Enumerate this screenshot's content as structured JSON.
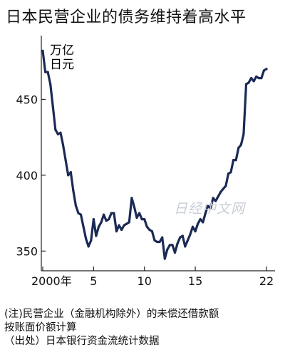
{
  "title": "日本民营企业的债务维持着高水平",
  "unit": [
    "万亿",
    "日元"
  ],
  "watermark": "日经中文网",
  "notes": [
    "(注)民营企业（金融机构除外）的未偿还借款额",
    "按账面价额计算",
    "（出处）日本银行资金流统计数据"
  ],
  "chart_data": {
    "type": "line",
    "title": "日本民营企业的债务维持着高水平",
    "ylabel": "万亿日元",
    "xlabel": "",
    "ylim": [
      337,
      492
    ],
    "xlim": [
      2000,
      2022
    ],
    "yticks": [
      350,
      400,
      450
    ],
    "ytick_labels": [
      "350",
      "400",
      "450"
    ],
    "xticks": [
      2000,
      2005,
      2010,
      2015,
      2022
    ],
    "xtick_labels": [
      "2000年",
      "5",
      "10",
      "15",
      "22"
    ],
    "grid": false,
    "color": "#1b2a55",
    "series": [
      {
        "x": [
          2000.0,
          2000.25,
          2000.5,
          2000.75,
          2001.0,
          2001.25,
          2001.5,
          2001.75,
          2002.0,
          2002.25,
          2002.5,
          2002.75,
          2003.0,
          2003.25,
          2003.5,
          2003.75,
          2004.0,
          2004.25,
          2004.5,
          2004.75,
          2005.0,
          2005.25,
          2005.5,
          2005.75,
          2006.0,
          2006.25,
          2006.5,
          2006.75,
          2007.0,
          2007.25,
          2007.5,
          2007.75,
          2008.0,
          2008.25,
          2008.5,
          2008.75,
          2009.0,
          2009.25,
          2009.5,
          2009.75,
          2010.0,
          2010.25,
          2010.5,
          2010.75,
          2011.0,
          2011.25,
          2011.5,
          2011.75,
          2012.0,
          2012.25,
          2012.5,
          2012.75,
          2013.0,
          2013.25,
          2013.5,
          2013.75,
          2014.0,
          2014.25,
          2014.5,
          2014.75,
          2015.0,
          2015.25,
          2015.5,
          2015.75,
          2016.0,
          2016.25,
          2016.5,
          2016.75,
          2017.0,
          2017.25,
          2017.5,
          2017.75,
          2018.0,
          2018.25,
          2018.5,
          2018.75,
          2019.0,
          2019.25,
          2019.5,
          2019.75,
          2020.0,
          2020.25,
          2020.5,
          2020.75,
          2021.0,
          2021.25,
          2021.5,
          2021.75,
          2022.0
        ],
        "values": [
          482,
          468,
          468,
          460,
          445,
          430,
          427,
          428,
          420,
          410,
          400,
          402,
          390,
          380,
          375,
          374,
          366,
          358,
          353,
          357,
          371,
          360,
          366,
          369,
          374,
          370,
          371,
          375,
          375,
          363,
          367,
          364,
          367,
          368,
          369,
          385,
          379,
          372,
          375,
          371,
          371,
          366,
          364,
          363,
          357,
          356,
          356,
          359,
          345,
          351,
          354,
          354,
          349,
          355,
          359,
          360,
          353,
          357,
          361,
          366,
          363,
          368,
          371,
          369,
          375,
          380,
          378,
          385,
          383,
          386,
          389,
          391,
          393,
          401,
          402,
          410,
          410,
          418,
          420,
          427,
          460,
          461,
          464,
          462,
          465,
          464,
          464,
          469,
          470
        ]
      }
    ]
  }
}
